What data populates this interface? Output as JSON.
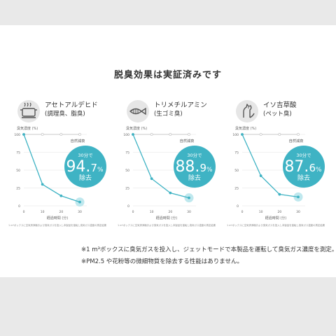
{
  "title": "脱臭効果は実証済みです",
  "panels": [
    {
      "icon": "cooking-pot-icon",
      "name": "アセトアルデヒド",
      "sub": "(調理臭、脂臭)",
      "ylabel": "臭気濃度 (%)",
      "xlabel": "経過時間 (分)",
      "natural_label": "自然減衰",
      "badge_top": "30分で",
      "badge_int": "94.",
      "badge_dec": "7",
      "badge_pct": "%",
      "badge_bottom": "除去",
      "note": "1 m³ボックスに空気清浄機および臭気ガスを投入し本製品を運転し臭気ガス濃度の測定結果",
      "yticks": [
        "100",
        "75",
        "50",
        "25",
        "0"
      ],
      "xticks": [
        "0",
        "10",
        "20",
        "30"
      ]
    },
    {
      "icon": "fish-icon",
      "name": "トリメチルアミン",
      "sub": "(生ゴミ臭)",
      "ylabel": "臭気濃度 (%)",
      "xlabel": "経過時間 (分)",
      "natural_label": "自然減衰",
      "badge_top": "30分で",
      "badge_int": "88.",
      "badge_dec": "9",
      "badge_pct": "%",
      "badge_bottom": "除去",
      "note": "1 m³ボックスに空気清浄機および臭気ガスを投入し本製品を運転し臭気ガス濃度の測定結果",
      "yticks": [
        "100",
        "75",
        "50",
        "25",
        "0"
      ],
      "xticks": [
        "0",
        "10",
        "20",
        "30"
      ]
    },
    {
      "icon": "dog-icon",
      "name": "イソ吉草酸",
      "sub": "(ペット臭)",
      "ylabel": "臭気濃度 (%)",
      "xlabel": "経過時間 (分)",
      "natural_label": "自然減衰",
      "badge_top": "30分で",
      "badge_int": "87.",
      "badge_dec": "6",
      "badge_pct": "%",
      "badge_bottom": "除去",
      "note": "1 m³ボックスに空気清浄機および臭気ガスを投入し本製品を運転し臭気ガス濃度の測定結果",
      "yticks": [
        "100",
        "75",
        "50",
        "25",
        "0"
      ],
      "xticks": [
        "0",
        "10",
        "20",
        "30"
      ]
    }
  ],
  "chart_data": [
    {
      "type": "line",
      "x": [
        0,
        10,
        20,
        30
      ],
      "series": [
        {
          "name": "自然減衰",
          "values": [
            100,
            100,
            100,
            100
          ]
        },
        {
          "values": [
            100,
            30,
            14,
            5.3
          ]
        }
      ],
      "xlabel": "経過時間 (分)",
      "ylabel": "臭気濃度 (%)",
      "xlim": [
        0,
        30
      ],
      "ylim": [
        0,
        100
      ]
    },
    {
      "type": "line",
      "x": [
        0,
        10,
        20,
        30
      ],
      "series": [
        {
          "name": "自然減衰",
          "values": [
            100,
            100,
            100,
            100
          ]
        },
        {
          "values": [
            100,
            38,
            18,
            11.1
          ]
        }
      ],
      "xlabel": "経過時間 (分)",
      "ylabel": "臭気濃度 (%)",
      "xlim": [
        0,
        30
      ],
      "ylim": [
        0,
        100
      ]
    },
    {
      "type": "line",
      "x": [
        0,
        10,
        20,
        30
      ],
      "series": [
        {
          "name": "自然減衰",
          "values": [
            100,
            100,
            100,
            100
          ]
        },
        {
          "values": [
            100,
            42,
            16,
            12.4
          ]
        }
      ],
      "xlabel": "経過時間 (分)",
      "ylabel": "臭気濃度 (%)",
      "xlim": [
        0,
        30
      ],
      "ylim": [
        0,
        100
      ]
    }
  ],
  "colors": {
    "accent": "#3fb3c4",
    "natural": "#bbbbbb",
    "glow": "#bfe8ee"
  },
  "footer": {
    "line1": "※1 m³ボックスに臭気ガスを投入し、ジェットモードで本製品を運転して臭気ガス濃度を測定。",
    "line2": "※PM2.5 や花粉等の微細物質を除去する性能はありません。"
  }
}
